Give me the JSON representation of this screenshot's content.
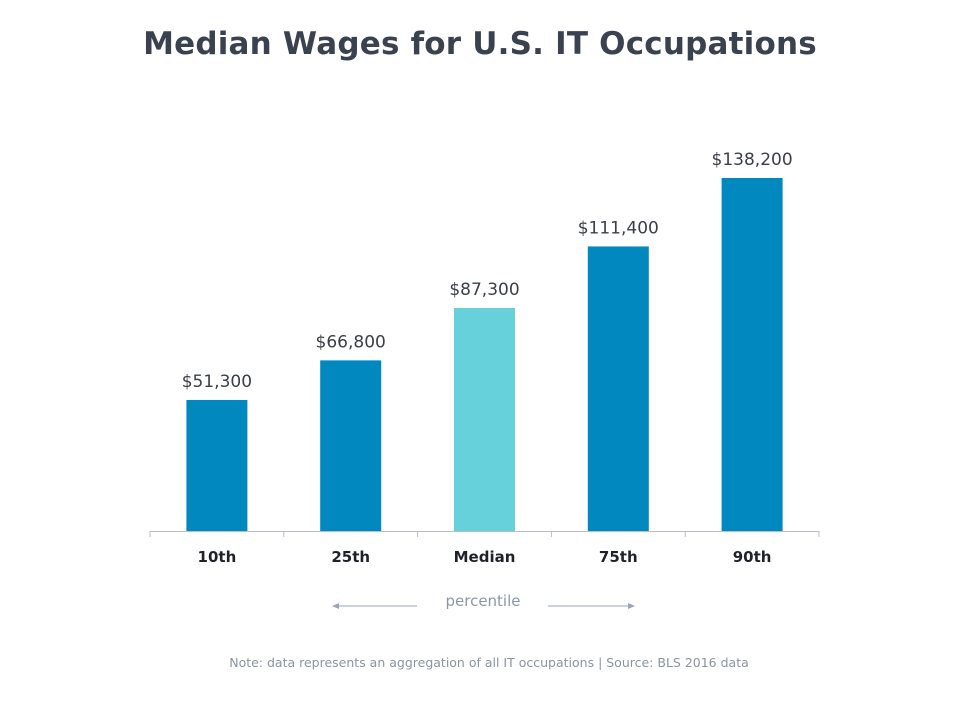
{
  "chart_data": {
    "type": "bar",
    "title": "Median Wages for U.S. IT Occupations",
    "categories": [
      "10th",
      "25th",
      "Median",
      "75th",
      "90th"
    ],
    "values": [
      51300,
      66800,
      87300,
      111400,
      138200
    ],
    "value_labels": [
      "$51,300",
      "$66,800",
      "$87,300",
      "$111,400",
      "$138,200"
    ],
    "xlabel": "percentile",
    "ylabel": "",
    "ylim": [
      0,
      140000
    ],
    "grid": false,
    "legend": "none",
    "colors": {
      "default": "#0088bf",
      "highlight": "#66d0db",
      "highlight_category": "Median"
    }
  },
  "footer": {
    "note": "Note: data represents an aggregation of all IT occupations | Source: BLS 2016 data"
  }
}
